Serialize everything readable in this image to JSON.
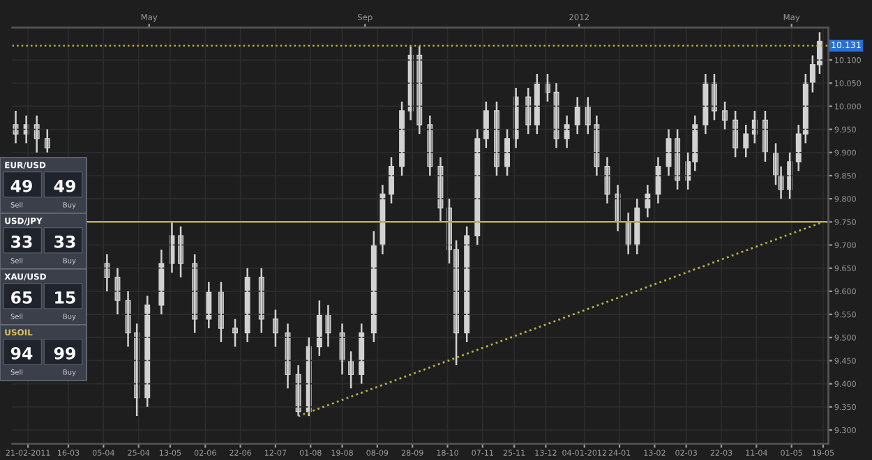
{
  "chart_data": {
    "type": "candlestick",
    "color": "#d2d2d2",
    "x": [
      "2011-02-14",
      "2011-02-20",
      "2011-02-26",
      "2011-03-04",
      "2011-04-07",
      "2011-04-13",
      "2011-04-19",
      "2011-04-24",
      "2011-04-30",
      "2011-05-08",
      "2011-05-14",
      "2011-05-19",
      "2011-05-27",
      "2011-06-04",
      "2011-06-11",
      "2011-06-19",
      "2011-06-26",
      "2011-07-04",
      "2011-07-12",
      "2011-07-19",
      "2011-07-25",
      "2011-07-31",
      "2011-08-06",
      "2011-08-11",
      "2011-08-19",
      "2011-08-24",
      "2011-08-30",
      "2011-09-06",
      "2011-09-11",
      "2011-09-16",
      "2011-09-22",
      "2011-09-27",
      "2011-10-02",
      "2011-10-08",
      "2011-10-14",
      "2011-10-19",
      "2011-10-23",
      "2011-10-29",
      "2011-11-04",
      "2011-11-09",
      "2011-11-15",
      "2011-11-21",
      "2011-11-26",
      "2011-12-03",
      "2011-12-08",
      "2011-12-14",
      "2011-12-19",
      "2011-12-25",
      "2011-12-31",
      "2012-01-06",
      "2012-01-11",
      "2012-01-17",
      "2012-01-23",
      "2012-01-29",
      "2012-02-03",
      "2012-02-09",
      "2012-02-15",
      "2012-02-21",
      "2012-02-26",
      "2012-03-03",
      "2012-03-07",
      "2012-03-13",
      "2012-03-18",
      "2012-03-24",
      "2012-03-30",
      "2012-04-05",
      "2012-04-10",
      "2012-04-16",
      "2012-04-22",
      "2012-04-25",
      "2012-04-30",
      "2012-05-05",
      "2012-05-09",
      "2012-05-13",
      "2012-05-17"
    ],
    "ohlc": [
      [
        9.96,
        9.99,
        9.92,
        9.94
      ],
      [
        9.94,
        9.98,
        9.92,
        9.96
      ],
      [
        9.96,
        9.98,
        9.9,
        9.93
      ],
      [
        9.93,
        9.95,
        9.9,
        9.91
      ],
      [
        9.66,
        9.68,
        9.6,
        9.63
      ],
      [
        9.63,
        9.65,
        9.55,
        9.58
      ],
      [
        9.58,
        9.6,
        9.48,
        9.51
      ],
      [
        9.51,
        9.53,
        9.33,
        9.37
      ],
      [
        9.37,
        9.59,
        9.35,
        9.57
      ],
      [
        9.57,
        9.69,
        9.55,
        9.66
      ],
      [
        9.66,
        9.75,
        9.64,
        9.72
      ],
      [
        9.72,
        9.74,
        9.63,
        9.66
      ],
      [
        9.66,
        9.68,
        9.51,
        9.54
      ],
      [
        9.54,
        9.62,
        9.52,
        9.6
      ],
      [
        9.6,
        9.62,
        9.49,
        9.52
      ],
      [
        9.52,
        9.54,
        9.48,
        9.51
      ],
      [
        9.51,
        9.65,
        9.49,
        9.63
      ],
      [
        9.63,
        9.65,
        9.51,
        9.54
      ],
      [
        9.54,
        9.56,
        9.48,
        9.51
      ],
      [
        9.51,
        9.53,
        9.39,
        9.42
      ],
      [
        9.42,
        9.44,
        9.33,
        9.34
      ],
      [
        9.34,
        9.5,
        9.33,
        9.48
      ],
      [
        9.48,
        9.58,
        9.46,
        9.55
      ],
      [
        9.55,
        9.57,
        9.48,
        9.51
      ],
      [
        9.51,
        9.53,
        9.42,
        9.45
      ],
      [
        9.45,
        9.47,
        9.39,
        9.42
      ],
      [
        9.42,
        9.53,
        9.4,
        9.51
      ],
      [
        9.51,
        9.73,
        9.49,
        9.7
      ],
      [
        9.7,
        9.83,
        9.68,
        9.81
      ],
      [
        9.81,
        9.89,
        9.79,
        9.87
      ],
      [
        9.87,
        10.01,
        9.85,
        9.99
      ],
      [
        9.99,
        10.13,
        9.97,
        10.11
      ],
      [
        10.11,
        10.13,
        9.94,
        9.96
      ],
      [
        9.96,
        9.98,
        9.85,
        9.87
      ],
      [
        9.87,
        9.89,
        9.75,
        9.78
      ],
      [
        9.78,
        9.8,
        9.66,
        9.69
      ],
      [
        9.69,
        9.71,
        9.44,
        9.51
      ],
      [
        9.51,
        9.74,
        9.49,
        9.72
      ],
      [
        9.72,
        9.95,
        9.7,
        9.93
      ],
      [
        9.93,
        10.01,
        9.91,
        9.99
      ],
      [
        9.99,
        10.01,
        9.85,
        9.87
      ],
      [
        9.87,
        9.95,
        9.85,
        9.93
      ],
      [
        9.93,
        10.04,
        9.91,
        10.02
      ],
      [
        10.02,
        10.04,
        9.94,
        9.96
      ],
      [
        9.96,
        10.07,
        9.94,
        10.05
      ],
      [
        10.05,
        10.07,
        10.01,
        10.03
      ],
      [
        10.03,
        10.05,
        9.91,
        9.93
      ],
      [
        9.93,
        9.98,
        9.91,
        9.96
      ],
      [
        9.96,
        10.02,
        9.94,
        10.0
      ],
      [
        10.0,
        10.02,
        9.94,
        9.96
      ],
      [
        9.96,
        9.98,
        9.85,
        9.87
      ],
      [
        9.87,
        9.89,
        9.79,
        9.81
      ],
      [
        9.81,
        9.83,
        9.73,
        9.75
      ],
      [
        9.75,
        9.77,
        9.68,
        9.7
      ],
      [
        9.7,
        9.8,
        9.68,
        9.78
      ],
      [
        9.78,
        9.83,
        9.76,
        9.81
      ],
      [
        9.81,
        9.89,
        9.79,
        9.87
      ],
      [
        9.87,
        9.95,
        9.85,
        9.93
      ],
      [
        9.93,
        9.95,
        9.82,
        9.84
      ],
      [
        9.84,
        9.9,
        9.82,
        9.88
      ],
      [
        9.88,
        9.98,
        9.86,
        9.96
      ],
      [
        9.96,
        10.07,
        9.94,
        10.05
      ],
      [
        10.05,
        10.07,
        9.97,
        9.99
      ],
      [
        9.99,
        10.01,
        9.95,
        9.97
      ],
      [
        9.97,
        9.99,
        9.89,
        9.91
      ],
      [
        9.91,
        9.96,
        9.89,
        9.94
      ],
      [
        9.94,
        9.99,
        9.92,
        9.97
      ],
      [
        9.97,
        9.99,
        9.88,
        9.9
      ],
      [
        9.9,
        9.92,
        9.83,
        9.85
      ],
      [
        9.85,
        9.87,
        9.8,
        9.82
      ],
      [
        9.82,
        9.9,
        9.8,
        9.88
      ],
      [
        9.88,
        9.96,
        9.86,
        9.94
      ],
      [
        9.94,
        10.07,
        9.92,
        10.05
      ],
      [
        10.05,
        10.11,
        10.03,
        10.09
      ],
      [
        10.09,
        10.16,
        10.07,
        10.14
      ]
    ],
    "series": [
      {
        "type": "line",
        "color": "#b8b04a",
        "line_style": "dotted",
        "x": [
          "2011-07-25",
          "2012-05-19"
        ],
        "values": [
          9.33,
          9.75
        ]
      }
    ],
    "xlim": [
      "2011-02-12",
      "2012-05-22"
    ],
    "xticks": [
      {
        "value": "2011-02-21",
        "label": "21-02-2011"
      },
      {
        "value": "2011-03-16",
        "label": "16-03"
      },
      {
        "value": "2011-04-05",
        "label": "05-04"
      },
      {
        "value": "2011-04-25",
        "label": "25-04"
      },
      {
        "value": "2011-05-13",
        "label": "13-05"
      },
      {
        "value": "2011-06-02",
        "label": "02-06"
      },
      {
        "value": "2011-06-22",
        "label": "22-06"
      },
      {
        "value": "2011-07-12",
        "label": "12-07"
      },
      {
        "value": "2011-08-01",
        "label": "01-08"
      },
      {
        "value": "2011-08-19",
        "label": "19-08"
      },
      {
        "value": "2011-09-08",
        "label": "08-09"
      },
      {
        "value": "2011-09-28",
        "label": "28-09"
      },
      {
        "value": "2011-10-18",
        "label": "18-10"
      },
      {
        "value": "2011-11-07",
        "label": "07-11"
      },
      {
        "value": "2011-11-25",
        "label": "25-11"
      },
      {
        "value": "2011-12-13",
        "label": "13-12"
      },
      {
        "value": "2012-01-04",
        "label": "04-01-2012"
      },
      {
        "value": "2012-01-24",
        "label": "24-01"
      },
      {
        "value": "2012-02-13",
        "label": "13-02"
      },
      {
        "value": "2012-03-02",
        "label": "02-03"
      },
      {
        "value": "2012-03-22",
        "label": "22-03"
      },
      {
        "value": "2012-04-11",
        "label": "11-04"
      },
      {
        "value": "2012-05-01",
        "label": "01-05"
      },
      {
        "value": "2012-05-19",
        "label": "19-05"
      }
    ],
    "x2lim": [
      "2011-02-12",
      "2012-05-22"
    ],
    "x2ticks": [
      {
        "value": "2011-05-01",
        "label": "May"
      },
      {
        "value": "2011-09-01",
        "label": "Sep"
      },
      {
        "value": "2012-01-01",
        "label": "2012"
      },
      {
        "value": "2012-05-01",
        "label": "May"
      }
    ],
    "ylim": [
      9.27,
      10.17
    ],
    "yticks": [
      {
        "value": 9.3,
        "label": "9.300"
      },
      {
        "value": 9.35,
        "label": "9.350"
      },
      {
        "value": 9.4,
        "label": "9.400"
      },
      {
        "value": 9.45,
        "label": "9.450"
      },
      {
        "value": 9.5,
        "label": "9.500"
      },
      {
        "value": 9.55,
        "label": "9.550"
      },
      {
        "value": 9.6,
        "label": "9.600"
      },
      {
        "value": 9.65,
        "label": "9.650"
      },
      {
        "value": 9.7,
        "label": "9.700"
      },
      {
        "value": 9.75,
        "label": "9.750"
      },
      {
        "value": 9.8,
        "label": "9.800"
      },
      {
        "value": 9.85,
        "label": "9.850"
      },
      {
        "value": 9.9,
        "label": "9.900"
      },
      {
        "value": 9.95,
        "label": "9.950"
      },
      {
        "value": 10.0,
        "label": "10.000"
      },
      {
        "value": 10.05,
        "label": "10.050"
      },
      {
        "value": 10.1,
        "label": "10.100"
      }
    ],
    "ref_lines": [
      {
        "axis": "y",
        "value": 10.131,
        "label": "10.131",
        "color": "#b8b04a",
        "line_style": "dotted"
      },
      {
        "axis": "y",
        "value": 9.75,
        "color": "#b8b04a",
        "line_style": "solid"
      }
    ],
    "grid": true,
    "annotations": [
      "EUR/USD",
      "49",
      "49",
      "Sell",
      "Buy",
      "USD/JPY",
      "33",
      "33",
      "Sell",
      "Buy",
      "XAU/USD",
      "65",
      "15",
      "Sell",
      "Buy",
      "USOIL",
      "94",
      "99",
      "Sell",
      "Buy"
    ]
  }
}
